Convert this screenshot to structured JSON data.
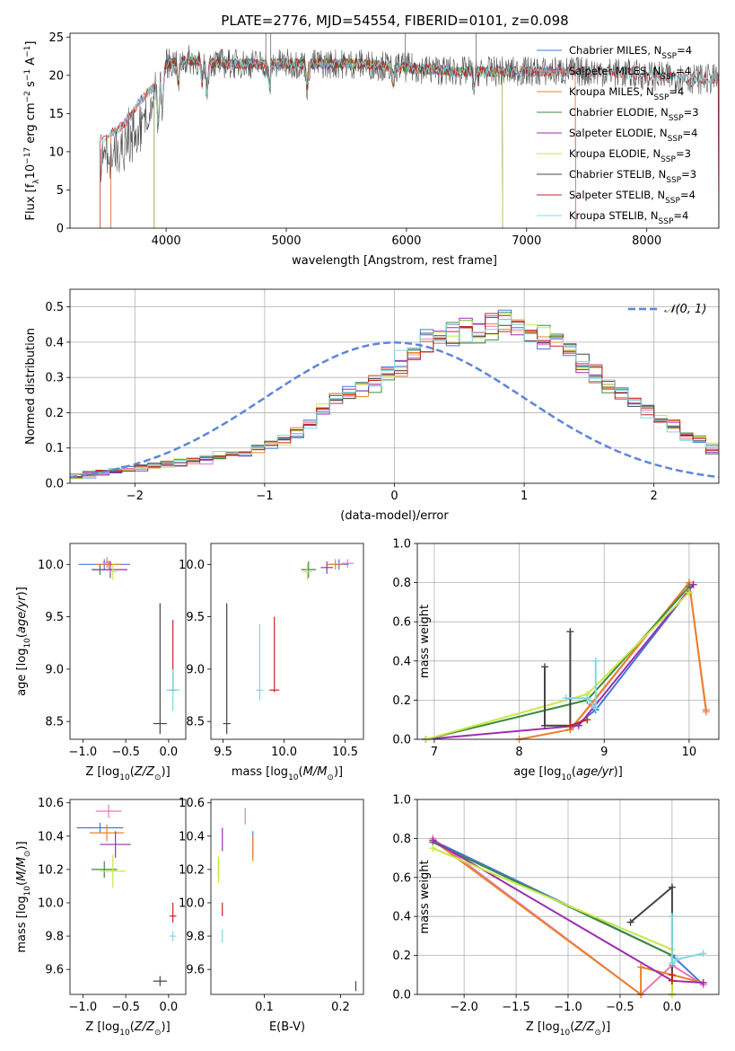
{
  "title": "PLATE=2776, MJD=54554, FIBERID=0101, z=0.098",
  "colors": {
    "chabrier_miles": "#4477dd",
    "salpeter_miles": "#e877b8",
    "kroupa_miles": "#e8832a",
    "chabrier_elodie": "#3c8a3c",
    "salpeter_elodie": "#9a2fb0",
    "kroupa_elodie": "#c8e84a",
    "chabrier_stelib": "#444444",
    "salpeter_stelib": "#cc2222",
    "kroupa_stelib": "#7fd8e0",
    "normal_dashed": "#5b86d9",
    "grid": "#b0b0b0"
  },
  "chart_data": [
    {
      "type": "line",
      "title": "PLATE=2776, MJD=54554, FIBERID=0101, z=0.098",
      "xlabel": "wavelength [Angstrom, rest frame]",
      "ylabel": "Flux [fλ10⁻¹⁷ erg cm⁻² s⁻¹ A⁻¹]",
      "xlim": [
        3200,
        8600
      ],
      "ylim": [
        0,
        25.5
      ],
      "xticks": [
        4000,
        5000,
        6000,
        7000,
        8000
      ],
      "yticks": [
        0,
        5,
        10,
        15,
        20,
        25
      ],
      "grid": false,
      "legend_position": "top-right",
      "series": [
        {
          "name": "Chabrier MILES, N_SSP=4",
          "color_key": "chabrier_miles"
        },
        {
          "name": "Salpeter MILES, N_SSP=4",
          "color_key": "salpeter_miles"
        },
        {
          "name": "Kroupa MILES, N_SSP=4",
          "color_key": "kroupa_miles"
        },
        {
          "name": "Chabrier ELODIE, N_SSP=3",
          "color_key": "chabrier_elodie"
        },
        {
          "name": "Salpeter ELODIE, N_SSP=4",
          "color_key": "salpeter_elodie"
        },
        {
          "name": "Kroupa ELODIE, N_SSP=3",
          "color_key": "kroupa_elodie"
        },
        {
          "name": "Chabrier STELIB, N_SSP=3",
          "color_key": "chabrier_stelib"
        },
        {
          "name": "Salpeter STELIB, N_SSP=4",
          "color_key": "salpeter_stelib"
        },
        {
          "name": "Kroupa STELIB, N_SSP=4",
          "color_key": "kroupa_stelib"
        }
      ],
      "continuum": {
        "x": [
          3450,
          3600,
          3700,
          3800,
          3900,
          4000,
          4200,
          4500,
          4800,
          5000,
          5300,
          5600,
          6000,
          6400,
          6800,
          7200,
          7600,
          8000,
          8400,
          8600
        ],
        "y": [
          11.5,
          12.8,
          14.5,
          17,
          18.5,
          21.5,
          22,
          21.5,
          21.5,
          21.5,
          21.5,
          21.5,
          21,
          20.5,
          20.5,
          20.5,
          20.5,
          20,
          19.5,
          19.5
        ]
      }
    },
    {
      "type": "line",
      "xlabel": "(data-model)/error",
      "ylabel": "Normed distribution",
      "xlim": [
        -2.5,
        2.5
      ],
      "ylim": [
        0,
        0.55
      ],
      "xticks": [
        -2,
        -1,
        0,
        1,
        2
      ],
      "yticks": [
        0.0,
        0.1,
        0.2,
        0.3,
        0.4,
        0.5
      ],
      "grid": true,
      "legend_position": "top-right",
      "legend": "𝒩(0, 1)",
      "bin_width": 0.1,
      "histogram_envelope": [
        0.02,
        0.025,
        0.03,
        0.035,
        0.04,
        0.045,
        0.05,
        0.055,
        0.06,
        0.065,
        0.07,
        0.075,
        0.08,
        0.09,
        0.1,
        0.11,
        0.12,
        0.14,
        0.17,
        0.21,
        0.24,
        0.26,
        0.27,
        0.28,
        0.3,
        0.34,
        0.38,
        0.4,
        0.41,
        0.42,
        0.43,
        0.44,
        0.45,
        0.45,
        0.44,
        0.43,
        0.42,
        0.4,
        0.37,
        0.34,
        0.31,
        0.28,
        0.26,
        0.23,
        0.2,
        0.18,
        0.16,
        0.14,
        0.12,
        0.1
      ]
    },
    {
      "type": "scatter",
      "xlabel": "Z [log10(Z/Z☉)]",
      "ylabel": "age [log10(age/yr)]",
      "xlim": [
        -1.15,
        0.2
      ],
      "ylim": [
        8.33,
        10.2
      ],
      "xticks": [
        -1.0,
        -0.5,
        0.0
      ],
      "yticks": [
        8.5,
        9.0,
        9.5,
        10.0
      ],
      "grid": false,
      "points": [
        {
          "x": -0.75,
          "y": 10.0,
          "xerr": 0.3,
          "yerr": 0.05,
          "color_key": "chabrier_miles"
        },
        {
          "x": -0.72,
          "y": 10.02,
          "xerr": 0.05,
          "yerr": 0.05,
          "color_key": "salpeter_miles"
        },
        {
          "x": -0.7,
          "y": 10.0,
          "xerr": 0.15,
          "yerr": 0.04,
          "color_key": "kroupa_miles"
        },
        {
          "x": -0.8,
          "y": 9.95,
          "xerr": 0.1,
          "yerr": 0.05,
          "color_key": "chabrier_elodie"
        },
        {
          "x": -0.68,
          "y": 9.95,
          "xerr": 0.2,
          "yerr": 0.08,
          "color_key": "salpeter_elodie"
        },
        {
          "x": -0.65,
          "y": 9.93,
          "xerr": 0.05,
          "yerr": 0.08,
          "color_key": "kroupa_elodie"
        },
        {
          "x": -0.1,
          "y": 8.48,
          "xerr": 0.08,
          "yerr": 0.1,
          "y_upper": 9.63,
          "color_key": "chabrier_stelib"
        },
        {
          "x": 0.05,
          "y": 8.8,
          "xerr": 0.04,
          "yerr": 0.02,
          "y_upper": 9.47,
          "color_key": "salpeter_stelib"
        },
        {
          "x": 0.05,
          "y": 8.8,
          "xerr": 0.08,
          "yerr": 0.2,
          "color_key": "kroupa_stelib"
        }
      ]
    },
    {
      "type": "scatter",
      "xlabel": "mass [log10(M/M☉)]",
      "ylabel": "",
      "xlim": [
        9.4,
        10.65
      ],
      "ylim": [
        8.33,
        10.2
      ],
      "xticks": [
        9.5,
        10.0,
        10.5
      ],
      "yticks": [
        8.5,
        9.0,
        9.5,
        10.0
      ],
      "grid": false,
      "points": [
        {
          "x": 10.45,
          "y": 10.0,
          "xerr": 0.08,
          "yerr": 0.05,
          "color_key": "chabrier_miles"
        },
        {
          "x": 10.52,
          "y": 10.01,
          "xerr": 0.05,
          "yerr": 0.04,
          "color_key": "salpeter_miles"
        },
        {
          "x": 10.42,
          "y": 10.0,
          "xerr": 0.07,
          "yerr": 0.05,
          "color_key": "kroupa_miles"
        },
        {
          "x": 10.2,
          "y": 9.95,
          "xerr": 0.06,
          "yerr": 0.08,
          "color_key": "chabrier_elodie"
        },
        {
          "x": 10.35,
          "y": 9.97,
          "xerr": 0.05,
          "yerr": 0.06,
          "color_key": "salpeter_elodie"
        },
        {
          "x": 10.19,
          "y": 9.93,
          "xerr": 0.04,
          "yerr": 0.08,
          "color_key": "kroupa_elodie"
        },
        {
          "x": 9.53,
          "y": 8.48,
          "xerr": 0.03,
          "yerr": 0.1,
          "y_upper": 9.63,
          "color_key": "chabrier_stelib"
        },
        {
          "x": 9.92,
          "y": 8.8,
          "xerr": 0.04,
          "yerr": 0.02,
          "y_upper": 9.5,
          "color_key": "salpeter_stelib"
        },
        {
          "x": 9.8,
          "y": 8.8,
          "xerr": 0.03,
          "yerr": 0.1,
          "y_upper": 9.43,
          "color_key": "kroupa_stelib"
        }
      ]
    },
    {
      "type": "line",
      "xlabel": "age [log10(age/yr)]",
      "ylabel": "mass weight",
      "xlim": [
        6.8,
        10.35
      ],
      "ylim": [
        0,
        1.0
      ],
      "xticks": [
        7,
        8,
        9,
        10
      ],
      "yticks": [
        0.0,
        0.2,
        0.4,
        0.6,
        0.8,
        1.0
      ],
      "grid": true,
      "series": [
        {
          "color_key": "chabrier_miles",
          "x": [
            8.6,
            8.9,
            10.05
          ],
          "y": [
            0.05,
            0.15,
            0.79
          ]
        },
        {
          "color_key": "salpeter_miles",
          "x": [
            8.6,
            8.85,
            10.0,
            10.2
          ],
          "y": [
            0.05,
            0.18,
            0.8,
            0.14
          ]
        },
        {
          "color_key": "kroupa_miles",
          "x": [
            8.0,
            8.6,
            10.0,
            10.2
          ],
          "y": [
            0.0,
            0.05,
            0.8,
            0.15
          ]
        },
        {
          "color_key": "chabrier_elodie",
          "x": [
            6.9,
            8.8,
            10.0
          ],
          "y": [
            0.0,
            0.2,
            0.78
          ]
        },
        {
          "color_key": "salpeter_elodie",
          "x": [
            6.9,
            8.7,
            10.05
          ],
          "y": [
            0.0,
            0.07,
            0.79
          ]
        },
        {
          "color_key": "kroupa_elodie",
          "x": [
            6.9,
            8.8,
            10.0
          ],
          "y": [
            0.0,
            0.23,
            0.75
          ]
        },
        {
          "color_key": "chabrier_stelib",
          "x": [
            8.3,
            8.3,
            8.6,
            8.6
          ],
          "y": [
            0.37,
            0.07,
            0.07,
            0.55
          ]
        },
        {
          "color_key": "salpeter_stelib",
          "x": [
            8.6,
            8.8
          ],
          "y": [
            0.07,
            0.1
          ]
        },
        {
          "color_key": "kroupa_stelib",
          "x": [
            8.55,
            8.8,
            8.9,
            8.9
          ],
          "y": [
            0.21,
            0.21,
            0.16,
            0.4
          ]
        }
      ]
    },
    {
      "type": "scatter",
      "xlabel": "Z [log10(Z/Z☉)]",
      "ylabel": "mass [log10(M/M☉)]",
      "xlim": [
        -1.15,
        0.2
      ],
      "ylim": [
        9.45,
        10.62
      ],
      "xticks": [
        -1.0,
        -0.5,
        0.0
      ],
      "yticks": [
        9.6,
        9.8,
        10.0,
        10.2,
        10.4,
        10.6
      ],
      "grid": false,
      "points": [
        {
          "x": -0.8,
          "y": 10.45,
          "xerr": 0.27,
          "yerr": 0.03,
          "color_key": "chabrier_miles"
        },
        {
          "x": -0.7,
          "y": 10.55,
          "xerr": 0.15,
          "yerr": 0.04,
          "color_key": "salpeter_miles"
        },
        {
          "x": -0.72,
          "y": 10.42,
          "xerr": 0.2,
          "yerr": 0.05,
          "color_key": "kroupa_miles"
        },
        {
          "x": -0.75,
          "y": 10.2,
          "xerr": 0.15,
          "yerr": 0.05,
          "color_key": "chabrier_elodie"
        },
        {
          "x": -0.62,
          "y": 10.35,
          "xerr": 0.18,
          "yerr": 0.08,
          "color_key": "salpeter_elodie"
        },
        {
          "x": -0.65,
          "y": 10.19,
          "xerr": 0.15,
          "yerr": 0.1,
          "color_key": "kroupa_elodie"
        },
        {
          "x": -0.1,
          "y": 9.53,
          "xerr": 0.08,
          "yerr": 0.03,
          "color_key": "chabrier_stelib"
        },
        {
          "x": 0.05,
          "y": 9.92,
          "xerr": 0.04,
          "yerr": 0.04,
          "y_upper": 10.0,
          "color_key": "salpeter_stelib"
        },
        {
          "x": 0.05,
          "y": 9.8,
          "xerr": 0.04,
          "yerr": 0.03,
          "color_key": "kroupa_stelib"
        }
      ]
    },
    {
      "type": "scatter",
      "xlabel": "E(B-V)",
      "ylabel": "",
      "xlim": [
        0.03,
        0.23
      ],
      "ylim": [
        9.45,
        10.62
      ],
      "xticks": [
        0.1,
        0.2
      ],
      "yticks": [
        9.6,
        9.8,
        10.0,
        10.2,
        10.4,
        10.6
      ],
      "grid": false,
      "points": [
        {
          "x": 0.085,
          "y": 10.35,
          "yerr": 0.08,
          "color_key": "chabrier_miles"
        },
        {
          "x": 0.075,
          "y": 10.52,
          "yerr": 0.05,
          "color_key": "salpeter_miles"
        },
        {
          "x": 0.085,
          "y": 10.33,
          "yerr": 0.08,
          "color_key": "kroupa_miles"
        },
        {
          "x": 0.04,
          "y": 10.2,
          "yerr": 0.05,
          "color_key": "chabrier_elodie"
        },
        {
          "x": 0.045,
          "y": 10.38,
          "yerr": 0.07,
          "color_key": "salpeter_elodie"
        },
        {
          "x": 0.04,
          "y": 10.2,
          "yerr": 0.08,
          "color_key": "kroupa_elodie"
        },
        {
          "x": 0.22,
          "y": 9.5,
          "yerr": 0.03,
          "color_key": "chabrier_stelib"
        },
        {
          "x": 0.045,
          "y": 9.96,
          "yerr": 0.04,
          "color_key": "salpeter_stelib"
        },
        {
          "x": 0.045,
          "y": 9.8,
          "yerr": 0.04,
          "color_key": "kroupa_stelib"
        }
      ]
    },
    {
      "type": "line",
      "xlabel": "Z [log10(Z/Z☉)]",
      "ylabel": "mass weight",
      "xlim": [
        -2.45,
        0.45
      ],
      "ylim": [
        0,
        1.0
      ],
      "xticks": [
        -2.0,
        -1.5,
        -1.0,
        -0.5,
        0.0
      ],
      "yticks": [
        0.0,
        0.2,
        0.4,
        0.6,
        0.8,
        1.0
      ],
      "grid": true,
      "series": [
        {
          "color_key": "chabrier_miles",
          "x": [
            -2.3,
            0.0,
            0.3
          ],
          "y": [
            0.79,
            0.2,
            0.05
          ]
        },
        {
          "color_key": "salpeter_miles",
          "x": [
            -2.3,
            -0.3,
            0.0,
            0.3
          ],
          "y": [
            0.8,
            0.0,
            0.15,
            0.05
          ]
        },
        {
          "color_key": "kroupa_miles",
          "x": [
            -2.3,
            -0.3,
            -0.3,
            0.3
          ],
          "y": [
            0.79,
            0.0,
            0.14,
            0.06
          ]
        },
        {
          "color_key": "chabrier_elodie",
          "x": [
            -2.3,
            0.0,
            0.0
          ],
          "y": [
            0.78,
            0.2,
            0.0
          ]
        },
        {
          "color_key": "salpeter_elodie",
          "x": [
            -2.3,
            0.0,
            0.3
          ],
          "y": [
            0.79,
            0.07,
            0.06
          ]
        },
        {
          "color_key": "kroupa_elodie",
          "x": [
            -2.3,
            0.0,
            0.0
          ],
          "y": [
            0.75,
            0.23,
            0.0
          ]
        },
        {
          "color_key": "chabrier_stelib",
          "x": [
            -0.4,
            0.0,
            0.0
          ],
          "y": [
            0.37,
            0.55,
            0.07
          ]
        },
        {
          "color_key": "salpeter_stelib",
          "x": [
            0.0,
            0.0
          ],
          "y": [
            0.07,
            0.1
          ]
        },
        {
          "color_key": "kroupa_stelib",
          "x": [
            0.0,
            0.0,
            0.05,
            0.3
          ],
          "y": [
            0.4,
            0.16,
            0.18,
            0.21
          ]
        }
      ]
    }
  ]
}
